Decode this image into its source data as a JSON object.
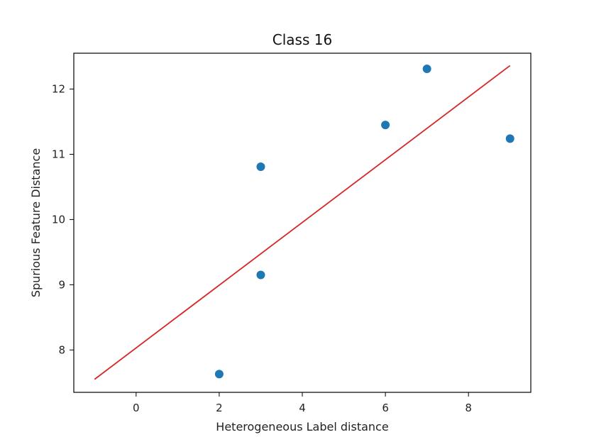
{
  "chart_data": {
    "type": "scatter",
    "title": "Class 16",
    "xlabel": "Heterogeneous Label distance",
    "ylabel": "Spurious Feature Distance",
    "xlim": [
      -1.5,
      9.5
    ],
    "ylim": [
      7.35,
      12.55
    ],
    "xticks": [
      "0",
      "2",
      "4",
      "6",
      "8"
    ],
    "yticks": [
      "8",
      "9",
      "10",
      "11",
      "12"
    ],
    "grid": false,
    "series": [
      {
        "kind": "scatter",
        "color": "#1f77b4",
        "points": [
          {
            "x": 2,
            "y": 7.63
          },
          {
            "x": 3,
            "y": 9.15
          },
          {
            "x": 3,
            "y": 10.81
          },
          {
            "x": 6,
            "y": 11.45
          },
          {
            "x": 7,
            "y": 12.31
          },
          {
            "x": 9,
            "y": 11.24
          }
        ]
      },
      {
        "kind": "fit-line",
        "color": "#d62728",
        "points": [
          {
            "x": -1,
            "y": 7.55
          },
          {
            "x": 9,
            "y": 12.36
          }
        ]
      }
    ]
  }
}
